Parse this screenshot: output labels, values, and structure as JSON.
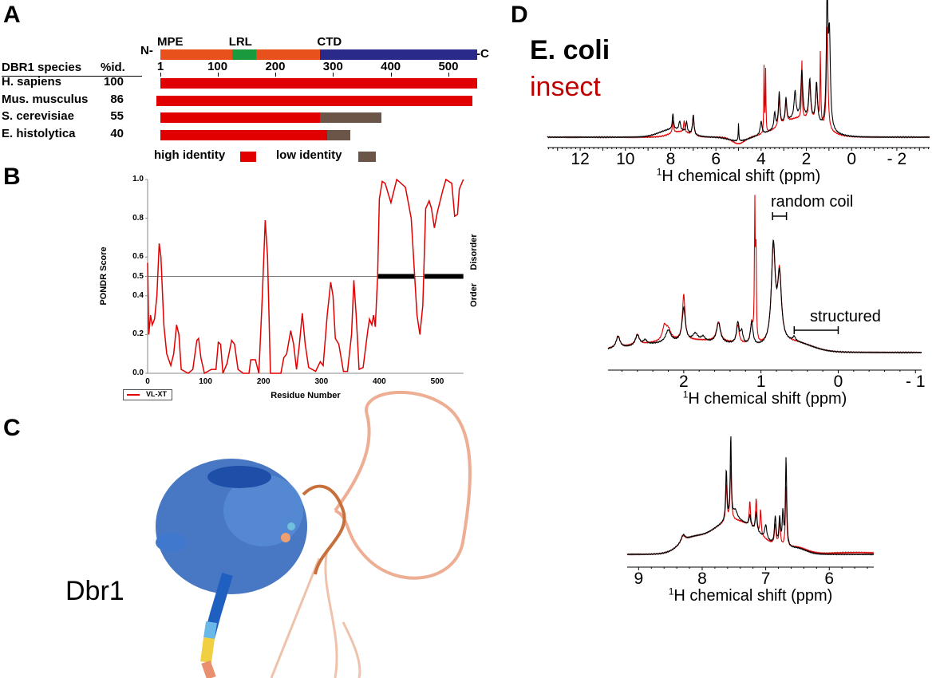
{
  "panels": {
    "a": "A",
    "b": "B",
    "c": "C",
    "d": "D"
  },
  "colors": {
    "high_identity": "#e00000",
    "low_identity": "#6b5448",
    "mpe": "#e8501c",
    "lrl": "#1a9a3c",
    "ctd": "#2a2a8a",
    "ecoli": "#000000",
    "insect": "#e00000",
    "pondr_line": "#e00000"
  },
  "panel_a": {
    "n_term": "N-",
    "c_term": "-C",
    "domains": [
      {
        "label": "MPE",
        "start": 1,
        "end": 125,
        "color": "#e8501c"
      },
      {
        "label": "LRL",
        "start": 125,
        "end": 167,
        "color": "#1a9a3c"
      },
      {
        "label": "",
        "start": 167,
        "end": 278,
        "color": "#e8501c"
      },
      {
        "label": "CTD",
        "start": 278,
        "end": 550,
        "color": "#2a2a8a"
      }
    ],
    "header_species": "DBR1 species",
    "header_id": "%id.",
    "ticks": [
      "1",
      "100",
      "200",
      "300",
      "400",
      "500"
    ],
    "tick_values": [
      1,
      100,
      200,
      300,
      400,
      500
    ],
    "species": [
      {
        "name": "H. sapiens",
        "id": "100",
        "start": 1,
        "high_end": 550,
        "low_end": 550
      },
      {
        "name": "Mus. musculus",
        "id": "86",
        "start": -6,
        "high_end": 542,
        "low_end": 542
      },
      {
        "name": "S. cerevisiae",
        "id": "55",
        "start": 1,
        "high_end": 278,
        "low_end": 384
      },
      {
        "name": "E. histolytica",
        "id": "40",
        "start": 1,
        "high_end": 290,
        "low_end": 330
      }
    ],
    "legend": {
      "high": "high identity",
      "low": "low identity"
    }
  },
  "chart_data": [
    {
      "type": "line",
      "panel": "B",
      "xlabel": "Residue Number",
      "ylabel": "PONDR Score",
      "xlim": [
        0,
        545
      ],
      "ylim": [
        0,
        1
      ],
      "xticks": [
        "0",
        "100",
        "200",
        "300",
        "400",
        "500"
      ],
      "yticks": [
        "0.0",
        "0.2",
        "0.4",
        "0.5",
        "0.6",
        "0.8",
        "1.0"
      ],
      "threshold": 0.5,
      "right_labels": {
        "upper": "Disorder",
        "lower": "Order"
      },
      "disordered_regions": [
        [
          398,
          461
        ],
        [
          478,
          545
        ]
      ],
      "legend": "bottom-left",
      "series": [
        {
          "name": "VL-XT",
          "color": "#e00000",
          "points": [
            [
              0,
              0.57
            ],
            [
              2,
              0.2
            ],
            [
              5,
              0.3
            ],
            [
              8,
              0.25
            ],
            [
              12,
              0.28
            ],
            [
              16,
              0.4
            ],
            [
              20,
              0.67
            ],
            [
              23,
              0.6
            ],
            [
              28,
              0.25
            ],
            [
              33,
              0.1
            ],
            [
              40,
              0.04
            ],
            [
              45,
              0.1
            ],
            [
              50,
              0.25
            ],
            [
              54,
              0.2
            ],
            [
              58,
              0.02
            ],
            [
              70,
              0.0
            ],
            [
              78,
              0.02
            ],
            [
              85,
              0.17
            ],
            [
              88,
              0.18
            ],
            [
              92,
              0.08
            ],
            [
              98,
              0
            ],
            [
              110,
              0.02
            ],
            [
              118,
              0.02
            ],
            [
              122,
              0.16
            ],
            [
              126,
              0.15
            ],
            [
              130,
              0
            ],
            [
              137,
              0.05
            ],
            [
              145,
              0.17
            ],
            [
              150,
              0.15
            ],
            [
              156,
              0.02
            ],
            [
              165,
              0
            ],
            [
              175,
              0
            ],
            [
              178,
              0.07
            ],
            [
              186,
              0.07
            ],
            [
              192,
              0
            ],
            [
              198,
              0.4
            ],
            [
              203,
              0.79
            ],
            [
              207,
              0.6
            ],
            [
              212,
              0
            ],
            [
              230,
              0
            ],
            [
              235,
              0.08
            ],
            [
              240,
              0.1
            ],
            [
              247,
              0.22
            ],
            [
              252,
              0.15
            ],
            [
              257,
              0.02
            ],
            [
              262,
              0.15
            ],
            [
              267,
              0.31
            ],
            [
              272,
              0.15
            ],
            [
              278,
              0.03
            ],
            [
              290,
              0.01
            ],
            [
              298,
              0.06
            ],
            [
              303,
              0.04
            ],
            [
              310,
              0.3
            ],
            [
              316,
              0.47
            ],
            [
              320,
              0.4
            ],
            [
              324,
              0.18
            ],
            [
              330,
              0.15
            ],
            [
              338,
              0.01
            ],
            [
              345,
              0.01
            ],
            [
              352,
              0.2
            ],
            [
              356,
              0.48
            ],
            [
              360,
              0.3
            ],
            [
              365,
              0.02
            ],
            [
              372,
              0.03
            ],
            [
              380,
              0.22
            ],
            [
              383,
              0.28
            ],
            [
              387,
              0.25
            ],
            [
              390,
              0.3
            ],
            [
              393,
              0.24
            ],
            [
              397,
              0.5
            ],
            [
              400,
              0.9
            ],
            [
              405,
              0.99
            ],
            [
              410,
              0.98
            ],
            [
              420,
              0.88
            ],
            [
              430,
              1.0
            ],
            [
              445,
              0.96
            ],
            [
              455,
              0.8
            ],
            [
              461,
              0.5
            ],
            [
              465,
              0.3
            ],
            [
              470,
              0.2
            ],
            [
              475,
              0.35
            ],
            [
              480,
              0.85
            ],
            [
              486,
              0.89
            ],
            [
              490,
              0.85
            ],
            [
              495,
              0.75
            ],
            [
              500,
              0.83
            ],
            [
              510,
              0.95
            ],
            [
              515,
              1.0
            ],
            [
              525,
              0.98
            ],
            [
              530,
              0.81
            ],
            [
              535,
              0.82
            ],
            [
              538,
              0.95
            ],
            [
              545,
              1.0
            ]
          ]
        }
      ]
    },
    {
      "type": "line",
      "panel": "D-top",
      "xlabel_pre": "1",
      "xlabel": "H chemical shift (ppm)",
      "xlim": [
        13.45,
        -3.45
      ],
      "xticks": [
        "12",
        "10",
        "8",
        "6",
        "4",
        "2",
        "0",
        "- 2"
      ],
      "xtick_values": [
        12,
        10,
        8,
        6,
        4,
        2,
        0,
        -2
      ],
      "legend": [
        "E. coli",
        "insect"
      ],
      "series": [
        {
          "name": "E. coli",
          "color": "#000000",
          "broad": [
            [
              2.3,
              0.14,
              1.2
            ],
            [
              7.9,
              0.06,
              0.8
            ],
            [
              5.0,
              -0.03,
              0.6
            ]
          ],
          "peaks": [
            [
              1.08,
              1.0,
              0.04
            ],
            [
              0.98,
              0.68,
              0.05
            ],
            [
              1.55,
              0.3,
              0.05
            ],
            [
              1.85,
              0.3,
              0.05
            ],
            [
              2.2,
              0.35,
              0.05
            ],
            [
              2.5,
              0.2,
              0.05
            ],
            [
              2.9,
              0.18,
              0.04
            ],
            [
              3.2,
              0.25,
              0.04
            ],
            [
              3.4,
              0.12,
              0.04
            ],
            [
              4.0,
              0.1,
              0.05
            ],
            [
              5.0,
              0.13,
              0.015
            ],
            [
              7.0,
              0.15,
              0.04
            ],
            [
              7.3,
              0.08,
              0.04
            ],
            [
              7.6,
              0.07,
              0.04
            ],
            [
              7.9,
              0.12,
              0.03
            ]
          ]
        },
        {
          "name": "insect",
          "color": "#e00000",
          "broad": [
            [
              2.3,
              0.14,
              1.2
            ],
            [
              7.6,
              0.04,
              0.6
            ],
            [
              5.0,
              -0.05,
              0.4
            ]
          ],
          "peaks": [
            [
              1.08,
              0.78,
              0.04
            ],
            [
              1.38,
              0.55,
              0.02
            ],
            [
              2.2,
              0.45,
              0.02
            ],
            [
              1.85,
              0.28,
              0.05
            ],
            [
              1.55,
              0.28,
              0.05
            ],
            [
              3.2,
              0.22,
              0.04
            ],
            [
              3.87,
              0.5,
              0.015
            ],
            [
              3.8,
              0.47,
              0.015
            ],
            [
              2.9,
              0.16,
              0.04
            ],
            [
              7.0,
              0.14,
              0.04
            ],
            [
              7.4,
              0.09,
              0.03
            ],
            [
              7.9,
              0.1,
              0.03
            ]
          ]
        }
      ]
    },
    {
      "type": "line",
      "panel": "D-middle",
      "xlabel_pre": "1",
      "xlabel": "H chemical shift (ppm)",
      "xlim": [
        2.98,
        -1.08
      ],
      "xticks": [
        "2",
        "1",
        "0",
        "- 1"
      ],
      "xtick_values": [
        2,
        1,
        0,
        -1
      ],
      "annotations": [
        {
          "text": "random coil",
          "from": 0.85,
          "to": 0.67
        },
        {
          "text": "structured",
          "from": 0.57,
          "to": 0.0
        }
      ],
      "series": [
        {
          "name": "E. coli",
          "color": "#000000",
          "broad": [
            [
              1.9,
              0.07,
              1.0
            ],
            [
              0.55,
              0.05,
              0.3
            ]
          ],
          "peaks": [
            [
              2.85,
              0.08,
              0.03
            ],
            [
              2.6,
              0.07,
              0.03
            ],
            [
              2.5,
              0.03,
              0.03
            ],
            [
              2.2,
              0.08,
              0.04
            ],
            [
              2.0,
              0.22,
              0.025
            ],
            [
              1.85,
              0.05,
              0.04
            ],
            [
              1.75,
              0.03,
              0.03
            ],
            [
              1.55,
              0.13,
              0.03
            ],
            [
              1.3,
              0.14,
              0.02
            ],
            [
              1.25,
              0.08,
              0.02
            ],
            [
              1.12,
              0.15,
              0.02
            ],
            [
              0.84,
              0.65,
              0.03
            ],
            [
              0.76,
              0.42,
              0.03
            ],
            [
              0.57,
              0.03,
              0.02
            ]
          ]
        },
        {
          "name": "insect",
          "color": "#e00000",
          "broad": [
            [
              1.9,
              0.08,
              1.0
            ],
            [
              0.55,
              0.05,
              0.3
            ]
          ],
          "peaks": [
            [
              2.85,
              0.07,
              0.03
            ],
            [
              2.6,
              0.07,
              0.03
            ],
            [
              2.25,
              0.09,
              0.03
            ],
            [
              2.2,
              0.07,
              0.04
            ],
            [
              2.0,
              0.3,
              0.02
            ],
            [
              1.55,
              0.13,
              0.03
            ],
            [
              1.3,
              0.12,
              0.02
            ],
            [
              1.12,
              0.13,
              0.02
            ],
            [
              1.08,
              0.88,
              0.006
            ],
            [
              1.065,
              0.6,
              0.006
            ],
            [
              0.84,
              0.62,
              0.03
            ],
            [
              0.76,
              0.44,
              0.03
            ]
          ]
        }
      ]
    },
    {
      "type": "line",
      "panel": "D-bottom",
      "xlabel_pre": "1",
      "xlabel": "H chemical shift (ppm)",
      "xlim": [
        9.18,
        5.3
      ],
      "xticks": [
        "9",
        "8",
        "7",
        "6"
      ],
      "xtick_values": [
        9,
        8,
        7,
        6
      ],
      "series": [
        {
          "name": "E. coli",
          "color": "#000000",
          "broad": [
            [
              7.5,
              0.36,
              0.55
            ],
            [
              8.2,
              0.1,
              0.25
            ],
            [
              6.5,
              0.05,
              0.2
            ]
          ],
          "peaks": [
            [
              8.3,
              0.08,
              0.04
            ],
            [
              7.62,
              0.55,
              0.012
            ],
            [
              7.55,
              0.9,
              0.01
            ],
            [
              7.48,
              0.1,
              0.04
            ],
            [
              7.25,
              0.12,
              0.015
            ],
            [
              7.15,
              0.2,
              0.015
            ],
            [
              7.0,
              0.15,
              0.02
            ],
            [
              6.85,
              0.3,
              0.015
            ],
            [
              6.78,
              0.3,
              0.015
            ],
            [
              6.73,
              0.35,
              0.012
            ],
            [
              6.68,
              0.95,
              0.012
            ]
          ]
        },
        {
          "name": "insect",
          "color": "#e00000",
          "broad": [
            [
              7.5,
              0.36,
              0.55
            ],
            [
              8.2,
              0.1,
              0.25
            ],
            [
              6.5,
              0.06,
              0.22
            ],
            [
              5.6,
              0.02,
              0.6
            ]
          ],
          "peaks": [
            [
              8.3,
              0.07,
              0.04
            ],
            [
              7.62,
              0.4,
              0.012
            ],
            [
              7.55,
              0.6,
              0.012
            ],
            [
              7.25,
              0.27,
              0.012
            ],
            [
              7.15,
              0.35,
              0.012
            ],
            [
              7.08,
              0.28,
              0.01
            ],
            [
              6.85,
              0.22,
              0.015
            ],
            [
              6.78,
              0.25,
              0.015
            ],
            [
              6.68,
              0.65,
              0.012
            ]
          ]
        }
      ]
    }
  ],
  "panel_c": {
    "label": "Dbr1",
    "structure_colors": {
      "high_confidence": "#1f5fbf",
      "confident": "#5aa0e0",
      "low": "#f0d040",
      "very_low": "#e89070"
    }
  },
  "panel_d": {
    "ecoli_label": "E. coli",
    "insect_label": "insect"
  }
}
